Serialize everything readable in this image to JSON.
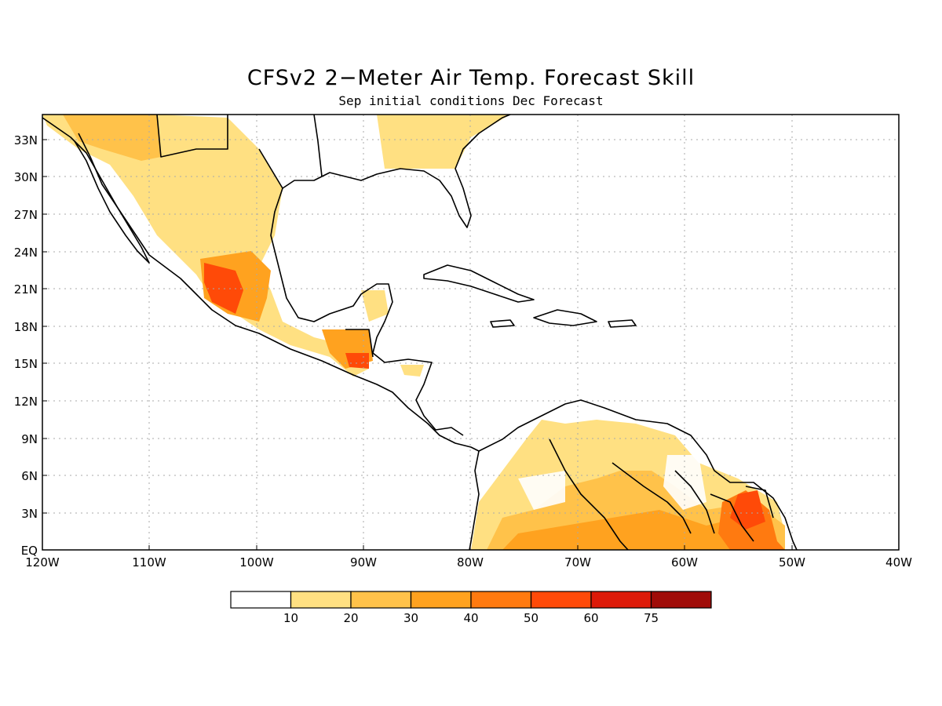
{
  "title": "CFSv2 2−Meter Air Temp. Forecast Skill",
  "subtitle": "Sep initial conditions  Dec Forecast",
  "map": {
    "lon_range": [
      -120,
      -40
    ],
    "lat_range": [
      0,
      35
    ],
    "grid": true,
    "lat_labels": [
      "33N",
      "30N",
      "27N",
      "24N",
      "21N",
      "18N",
      "15N",
      "12N",
      "9N",
      "6N",
      "3N",
      "EQ"
    ],
    "lon_labels": [
      "120W",
      "110W",
      "100W",
      "90W",
      "80W",
      "70W",
      "60W",
      "50W",
      "40W"
    ]
  },
  "legend": {
    "labels": [
      "10",
      "20",
      "30",
      "40",
      "50",
      "60",
      "75"
    ],
    "colors": [
      "#ffffff",
      "#ffe082",
      "#ffc24a",
      "#ffa21f",
      "#ff7a10",
      "#ff4a08",
      "#dd1a08",
      "#a00c08"
    ]
  }
}
